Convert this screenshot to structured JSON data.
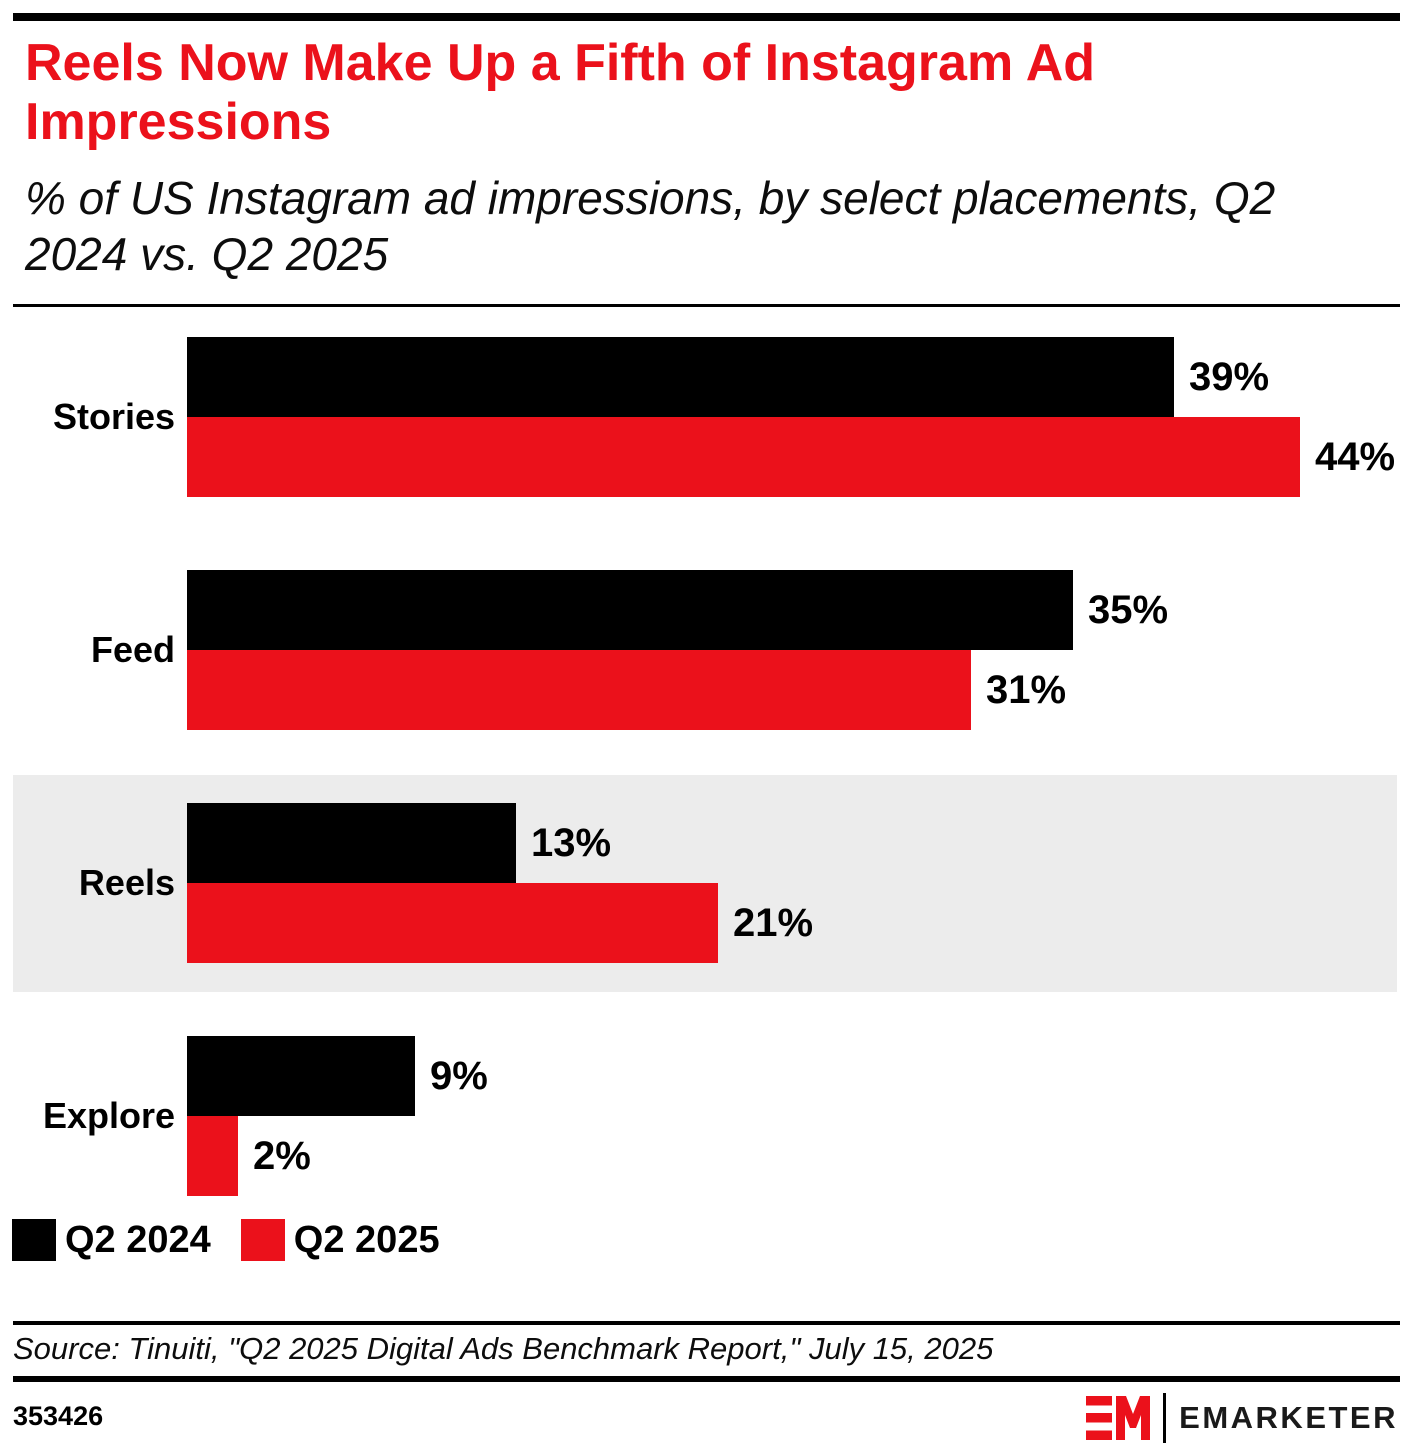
{
  "header": {
    "title": "Reels Now Make Up a Fifth of Instagram Ad Impressions",
    "subtitle": "% of US Instagram ad impressions, by select placements, Q2 2024 vs. Q2 2025"
  },
  "colors": {
    "accent_red": "#EB111B",
    "bar_black": "#000000",
    "highlight_band_gray": "#ECECEC"
  },
  "chart_data": {
    "type": "bar",
    "orientation": "horizontal",
    "unit": "%",
    "title": "Reels Now Make Up a Fifth of Instagram Ad Impressions",
    "subtitle": "% of US Instagram ad impressions, by select placements, Q2 2024 vs. Q2 2025",
    "categories": [
      "Stories",
      "Feed",
      "Reels",
      "Explore"
    ],
    "series": [
      {
        "name": "Q2 2024",
        "color": "#000000",
        "values": [
          39,
          35,
          13,
          9
        ],
        "value_labels": [
          "39%",
          "35%",
          "13%",
          "9%"
        ]
      },
      {
        "name": "Q2 2025",
        "color": "#EB111B",
        "values": [
          44,
          31,
          21,
          2
        ],
        "value_labels": [
          "44%",
          "31%",
          "21%",
          "2%"
        ]
      }
    ],
    "highlighted_category": "Reels",
    "xlim": [
      0,
      44
    ],
    "grid": false,
    "legend_position": "bottom-left"
  },
  "legend": {
    "items": [
      {
        "label": "Q2 2024",
        "color": "#000000"
      },
      {
        "label": "Q2 2025",
        "color": "#EB111B"
      }
    ]
  },
  "footer": {
    "source_line": "Source: Tinuiti, \"Q2 2025 Digital Ads Benchmark Report,\" July 15, 2025",
    "chart_id": "353426",
    "brand_wordmark": "EMARKETER"
  }
}
